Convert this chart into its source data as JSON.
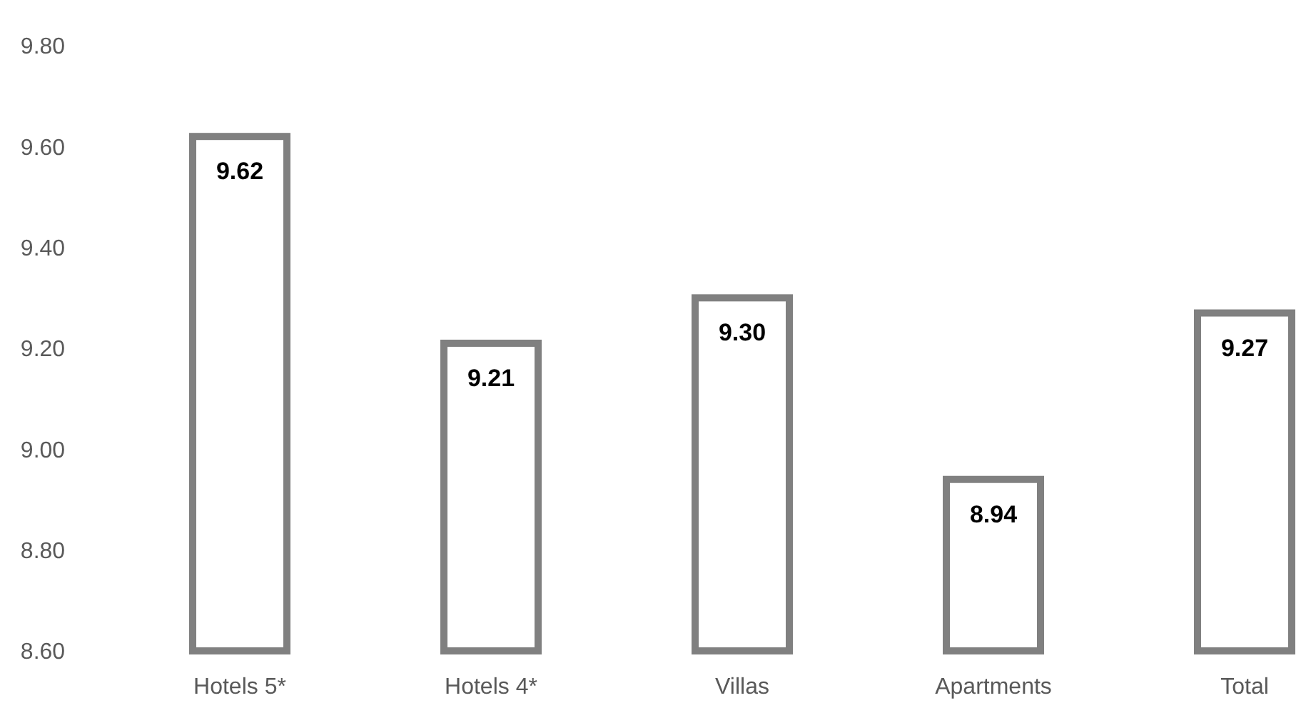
{
  "chart_data": {
    "type": "bar",
    "categories": [
      "Hotels 5*",
      "Hotels 4*",
      "Villas",
      "Apartments",
      "Total"
    ],
    "values": [
      9.62,
      9.21,
      9.3,
      8.94,
      9.27
    ],
    "color": "#808080",
    "ylim": [
      8.6,
      9.8
    ],
    "yticks": [
      {
        "value": 8.6,
        "label": "8.60"
      },
      {
        "value": 8.8,
        "label": "8.80"
      },
      {
        "value": 9.0,
        "label": "9.00"
      },
      {
        "value": 9.2,
        "label": "9.20"
      },
      {
        "value": 9.4,
        "label": "9.40"
      },
      {
        "value": 9.6,
        "label": "9.60"
      },
      {
        "value": 9.8,
        "label": "9.80"
      }
    ],
    "value_labels": [
      "9.62",
      "9.21",
      "9.30",
      "8.94",
      "9.27"
    ],
    "grid": false
  }
}
